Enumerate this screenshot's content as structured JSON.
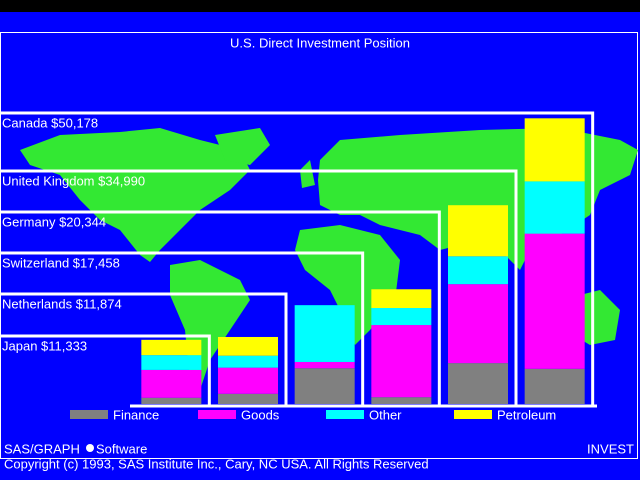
{
  "chart_data": {
    "type": "bar",
    "stacked": true,
    "title": "U.S. Direct Investment Position",
    "categories": [
      "Japan $11,333",
      "Netherlands $11,874",
      "Switzerland $17,458",
      "Germany $20,344",
      "United Kingdom $34,990",
      "Canada $50,178"
    ],
    "series": [
      {
        "name": "Finance",
        "color": "#808080",
        "values": [
          1100,
          1800,
          6300,
          1200,
          7200,
          6200
        ]
      },
      {
        "name": "Goods",
        "color": "#ff00ff",
        "values": [
          4900,
          4600,
          1100,
          12700,
          13900,
          23800
        ]
      },
      {
        "name": "Other",
        "color": "#00ffff",
        "values": [
          2600,
          2100,
          10000,
          3000,
          4900,
          9200
        ]
      },
      {
        "name": "Petroleum",
        "color": "#ffff00",
        "values": [
          2700,
          3300,
          0,
          3300,
          9000,
          11100
        ]
      }
    ],
    "ylim": [
      0,
      60000
    ],
    "footer_left": [
      "SAS/GRAPH",
      "Software"
    ],
    "footer_right": "INVEST",
    "copyright": "Copyright (c) 1993, SAS Institute Inc., Cary, NC USA. All Rights Reserved"
  }
}
